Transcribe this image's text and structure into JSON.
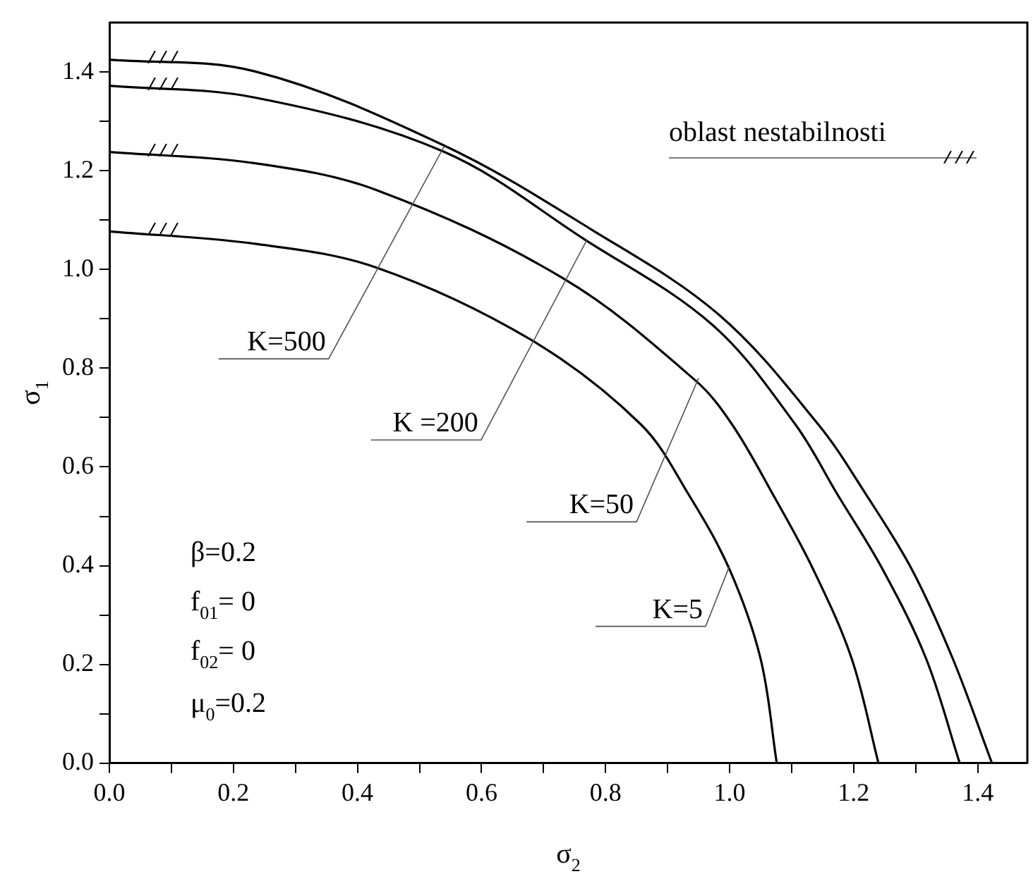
{
  "chart_data": {
    "type": "line",
    "xlabel": "σ$_{2}$",
    "ylabel": "σ$_{1}$",
    "xlim": [
      0,
      1.48
    ],
    "ylim": [
      0,
      1.5
    ],
    "xticks": [
      {
        "value": 0,
        "label": "0.0"
      },
      {
        "value": 0.1,
        "label": null
      },
      {
        "value": 0.2,
        "label": "0.2"
      },
      {
        "value": 0.3,
        "label": null
      },
      {
        "value": 0.4,
        "label": "0.4"
      },
      {
        "value": 0.5,
        "label": null
      },
      {
        "value": 0.6,
        "label": "0.6"
      },
      {
        "value": 0.7,
        "label": null
      },
      {
        "value": 0.8,
        "label": "0.8"
      },
      {
        "value": 0.9,
        "label": null
      },
      {
        "value": 1,
        "label": "1.0"
      },
      {
        "value": 1.1,
        "label": null
      },
      {
        "value": 1.2,
        "label": "1.2"
      },
      {
        "value": 1.3,
        "label": null
      },
      {
        "value": 1.4,
        "label": "1.4"
      }
    ],
    "yticks": [
      {
        "value": 0,
        "label": "0.0"
      },
      {
        "value": 0.1,
        "label": null
      },
      {
        "value": 0.2,
        "label": "0.2"
      },
      {
        "value": 0.3,
        "label": null
      },
      {
        "value": 0.4,
        "label": "0.4"
      },
      {
        "value": 0.5,
        "label": null
      },
      {
        "value": 0.6,
        "label": "0.6"
      },
      {
        "value": 0.7,
        "label": null
      },
      {
        "value": 0.8,
        "label": "0.8"
      },
      {
        "value": 0.9,
        "label": null
      },
      {
        "value": 1,
        "label": "1.0"
      },
      {
        "value": 1.1,
        "label": null
      },
      {
        "value": 1.2,
        "label": "1.2"
      },
      {
        "value": 1.3,
        "label": null
      },
      {
        "value": 1.4,
        "label": "1.4"
      }
    ],
    "grid": false,
    "legend": false,
    "marker": "none",
    "line_style": "solid",
    "series": [
      {
        "color": "#000000",
        "x": [
          0,
          0.235,
          0.538,
          0.777,
          0.983,
          1.143,
          1.22,
          1.294,
          1.36,
          1.423
        ],
        "values": [
          1.425,
          1.401,
          1.252,
          1.081,
          0.908,
          0.686,
          0.544,
          0.392,
          0.211,
          0
        ]
      },
      {
        "color": "#000000",
        "x": [
          0,
          0.235,
          0.538,
          0.766,
          0.972,
          1.106,
          1.174,
          1.247,
          1.317,
          1.371
        ],
        "values": [
          1.372,
          1.348,
          1.239,
          1.061,
          0.888,
          0.686,
          0.544,
          0.392,
          0.211,
          0
        ]
      },
      {
        "color": "#000000",
        "x": [
          0,
          0.235,
          0.43,
          0.733,
          0.945,
          1.004,
          1.07,
          1.135,
          1.197,
          1.24
        ],
        "values": [
          1.238,
          1.215,
          1.161,
          0.981,
          0.775,
          0.686,
          0.544,
          0.392,
          0.211,
          0
        ]
      },
      {
        "color": "#000000",
        "x": [
          0,
          0.235,
          0.43,
          0.679,
          0.857,
          0.934,
          1.0,
          1.05,
          1.076
        ],
        "values": [
          1.077,
          1.052,
          1.004,
          0.858,
          0.686,
          0.544,
          0.392,
          0.211,
          0
        ]
      }
    ],
    "annotations": [
      {
        "text": "K=500",
        "x": 0.54,
        "y": 1.25
      },
      {
        "text": "K =200",
        "x": 0.77,
        "y": 1.06
      },
      {
        "text": "K=50",
        "x": 0.95,
        "y": 0.78
      },
      {
        "text": "K=5",
        "x": 1.0,
        "y": 0.4
      },
      "oblast nestabilnosti",
      "β=0.2",
      "f$_{01}$= 0",
      "f$_{02}$= 0",
      "μ$_{0}$=0.2"
    ]
  }
}
